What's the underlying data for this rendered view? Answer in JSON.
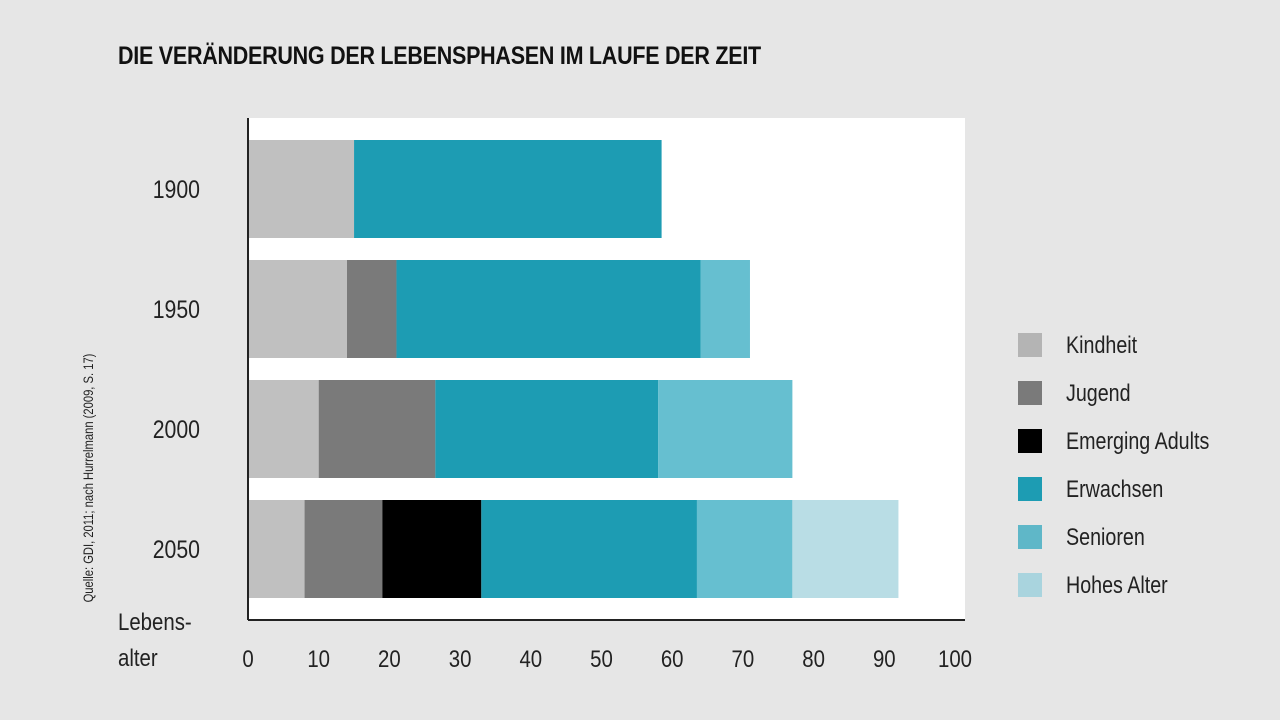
{
  "chart_data": {
    "type": "bar",
    "orientation": "horizontal",
    "stacked": true,
    "title": "DIE VERÄNDERUNG DER LEBENSPHASEN IM LAUFE DER ZEIT",
    "source": "Quelle: GDI, 2011; nach Hurrelmann (2009, S. 17)",
    "ylabel": "Lebens-\nalter",
    "ylabel_lines": [
      "Lebens-",
      "alter"
    ],
    "categories": [
      "1900",
      "1950",
      "2000",
      "2050"
    ],
    "xlim": [
      0,
      100
    ],
    "xticks": [
      0,
      10,
      20,
      30,
      40,
      50,
      60,
      70,
      80,
      90,
      100
    ],
    "legend_position": "right",
    "grid": false,
    "series": [
      {
        "name": "Kindheit",
        "color": "#c0c0c0",
        "values": [
          15,
          14,
          10,
          8
        ]
      },
      {
        "name": "Jugend",
        "color": "#7a7a7a",
        "values": [
          0,
          7,
          16.5,
          11
        ]
      },
      {
        "name": "Emerging Adults",
        "color": "#000000",
        "values": [
          0,
          0,
          0,
          14
        ]
      },
      {
        "name": "Erwachsen",
        "color": "#1d9cb3",
        "values": [
          43.5,
          43,
          31.5,
          30.5
        ]
      },
      {
        "name": "Senioren",
        "color": "#66bfd0",
        "values": [
          0,
          7,
          19,
          13.5
        ]
      },
      {
        "name": "Hohes Alter",
        "color": "#b9dde5",
        "values": [
          0,
          0,
          0,
          15
        ]
      }
    ],
    "legend_swatch_colors": [
      "#b4b4b4",
      "#7a7a7a",
      "#000000",
      "#1d9cb3",
      "#5fb7c8",
      "#a9d4de"
    ]
  }
}
